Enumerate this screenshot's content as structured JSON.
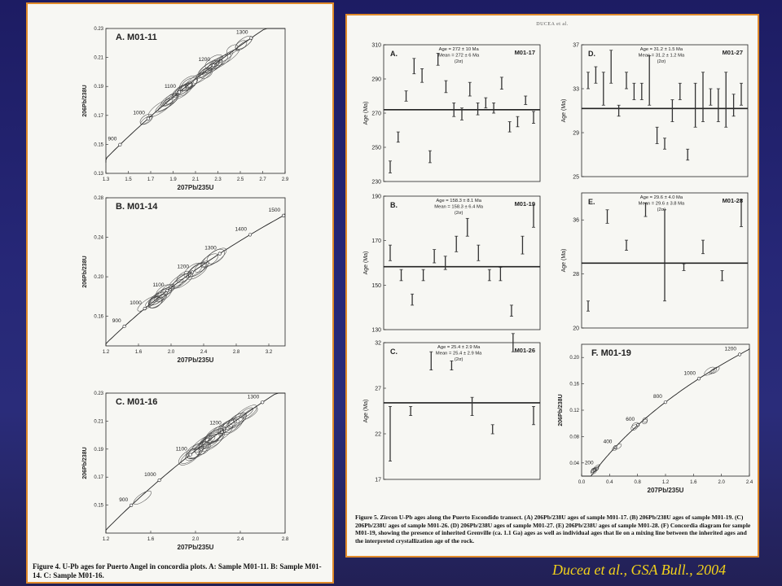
{
  "credit": "Ducea et al., GSA Bull., 2004",
  "left_caption": "Figure 4. U-Pb ages for Puerto Angel in concordia plots. A: Sample M01-11. B: Sample M01-14. C: Sample M01-16.",
  "right_header": "DUCEA et al.",
  "right_caption": "Figure 5. Zircon U-Pb ages along the Puerto Escondido transect. (A) 206Pb/238U ages of sample M01-17. (B) 206Pb/238U ages of sample M01-19. (C) 206Pb/238U ages of sample M01-26. (D) 206Pb/238U ages of sample M01-27. (E) 206Pb/238U ages of sample M01-28. (F) Concordia diagram for sample M01-19, showing the presence of inherited Grenville (ca. 1.1 Ga) ages as well as individual ages that lie on a mixing line between the inherited ages and the interpreted crystallization age of the rock.",
  "concordia_ylabel": "206Pb/238U",
  "concordia_xlabel": "207Pb/235U",
  "age_ylabel": "Age (Ma)",
  "chart_data": [
    {
      "type": "scatter",
      "panel": "A.",
      "sample": "M01-11",
      "xlabel": "207Pb/235U",
      "ylabel": "206Pb/238U",
      "xticks": [
        "1.3",
        "1.5",
        "1.7",
        "1.9",
        "2.1",
        "2.3",
        "2.5",
        "2.7",
        "2.9"
      ],
      "yticks": [
        "0.13",
        "0.15",
        "0.17",
        "0.19",
        "0.21",
        "0.23"
      ],
      "xlim": [
        1.3,
        2.9
      ],
      "ylim": [
        0.13,
        0.23
      ],
      "concordia_ages": [
        "900",
        "1000",
        "1100",
        "1200",
        "1300"
      ]
    },
    {
      "type": "scatter",
      "panel": "B.",
      "sample": "M01-14",
      "xlabel": "207Pb/235U",
      "ylabel": "206Pb/238U",
      "xticks": [
        "1.2",
        "1.6",
        "2.0",
        "2.4",
        "2.8",
        "3.2"
      ],
      "yticks": [
        "0.16",
        "0.20",
        "0.24",
        "0.28"
      ],
      "xlim": [
        1.2,
        3.4
      ],
      "ylim": [
        0.13,
        0.28
      ],
      "concordia_ages": [
        "900",
        "1000",
        "1100",
        "1200",
        "1300",
        "1400",
        "1500"
      ]
    },
    {
      "type": "scatter",
      "panel": "C.",
      "sample": "M01-16",
      "xlabel": "207Pb/235U",
      "ylabel": "206Pb/238U",
      "xticks": [
        "1.2",
        "1.6",
        "2.0",
        "2.4",
        "2.8"
      ],
      "yticks": [
        "0.15",
        "0.17",
        "0.19",
        "0.21",
        "0.23"
      ],
      "xlim": [
        1.2,
        2.8
      ],
      "ylim": [
        0.13,
        0.23
      ],
      "concordia_ages": [
        "900",
        "1000",
        "1100",
        "1200",
        "1300"
      ]
    },
    {
      "type": "scatter",
      "panel": "A.",
      "sample": "M01-17",
      "stats": [
        "Age = 272 ± 10 Ma",
        "Mean = 272 ± 6 Ma",
        "(2σ)"
      ],
      "ylim": [
        230,
        310
      ],
      "yticks": [
        "230",
        "250",
        "270",
        "290",
        "310"
      ],
      "mean": 272,
      "bars": [
        [
          235,
          242
        ],
        [
          253,
          259
        ],
        [
          277,
          283
        ],
        [
          293,
          302
        ],
        [
          288,
          296
        ],
        [
          241,
          248
        ],
        [
          298,
          305
        ],
        [
          282,
          289
        ],
        [
          268,
          276
        ],
        [
          266,
          273
        ],
        [
          280,
          288
        ],
        [
          269,
          276
        ],
        [
          273,
          279
        ],
        [
          270,
          276
        ],
        [
          284,
          291
        ],
        [
          259,
          265
        ],
        [
          262,
          268
        ],
        [
          275,
          280
        ],
        [
          264,
          271
        ]
      ]
    },
    {
      "type": "scatter",
      "panel": "B.",
      "sample": "M01-19",
      "stats": [
        "Age = 158.3 ± 8.1 Ma",
        "Mean = 158.3 ± 6.4 Ma",
        "(2σ)"
      ],
      "ylim": [
        130,
        190
      ],
      "yticks": [
        "130",
        "150",
        "170",
        "190"
      ],
      "mean": 158.3,
      "bars": [
        [
          161,
          168
        ],
        [
          152,
          157
        ],
        [
          141,
          146
        ],
        [
          152,
          157
        ],
        [
          160,
          166
        ],
        [
          157,
          163
        ],
        [
          165,
          172
        ],
        [
          172,
          180
        ],
        [
          161,
          168
        ],
        [
          152,
          157
        ],
        [
          152,
          158
        ],
        [
          136,
          141
        ],
        [
          164,
          172
        ],
        [
          176,
          186
        ]
      ]
    },
    {
      "type": "scatter",
      "panel": "C.",
      "sample": "M01-26",
      "stats": [
        "Age = 25.4 ± 2.9 Ma",
        "Mean = 25.4 ± 2.9 Ma",
        "(2σ)"
      ],
      "ylim": [
        17,
        32
      ],
      "yticks": [
        "17",
        "22",
        "27",
        "32"
      ],
      "mean": 25.4,
      "bars": [
        [
          19,
          25
        ],
        [
          24,
          25
        ],
        [
          29,
          31
        ],
        [
          29,
          30
        ],
        [
          24,
          26
        ],
        [
          22,
          23
        ],
        [
          31,
          33
        ],
        [
          23,
          25
        ]
      ]
    },
    {
      "type": "scatter",
      "panel": "D.",
      "sample": "M01-27",
      "stats": [
        "Age = 31.2 ± 1.5 Ma",
        "Mean = 31.2 ± 1.2 Ma",
        "(2σ)"
      ],
      "ylim": [
        25,
        37
      ],
      "yticks": [
        "25",
        "29",
        "33",
        "37"
      ],
      "mean": 31.2,
      "bars": [
        [
          33,
          34.5
        ],
        [
          33.5,
          35
        ],
        [
          31.5,
          34.5
        ],
        [
          33.5,
          36.5
        ],
        [
          30.5,
          31.5
        ],
        [
          33,
          34.5
        ],
        [
          32,
          33.5
        ],
        [
          32,
          33.5
        ],
        [
          31.5,
          36
        ],
        [
          28,
          29.5
        ],
        [
          27.5,
          28.5
        ],
        [
          30,
          32
        ],
        [
          32,
          33.5
        ],
        [
          26.5,
          27.5
        ],
        [
          29.5,
          33.5
        ],
        [
          30,
          34.5
        ],
        [
          31.5,
          33
        ],
        [
          30,
          33
        ],
        [
          29.5,
          34.5
        ],
        [
          30.5,
          32.5
        ],
        [
          31.5,
          33.5
        ]
      ]
    },
    {
      "type": "scatter",
      "panel": "E.",
      "sample": "M01-28",
      "stats": [
        "Age = 29.6 ± 4.0 Ma",
        "Mean = 29.6 ± 3.8 Ma",
        "(2σ)"
      ],
      "ylim": [
        20,
        40
      ],
      "yticks": [
        "20",
        "28",
        "36"
      ],
      "mean": 29.6,
      "bars": [
        [
          22.5,
          24
        ],
        [
          35.5,
          37.5
        ],
        [
          31.5,
          33
        ],
        [
          36.5,
          38.5
        ],
        [
          24,
          37.5
        ],
        [
          28.5,
          29.5
        ],
        [
          31,
          33
        ],
        [
          27,
          28.5
        ],
        [
          35,
          39
        ]
      ]
    },
    {
      "type": "scatter",
      "panel": "F.",
      "sample": "M01-19",
      "xlabel": "207Pb/235U",
      "ylabel": "206Pb/238U",
      "xticks": [
        "0.0",
        "0.4",
        "0.8",
        "1.2",
        "1.6",
        "2.0",
        "2.4"
      ],
      "yticks": [
        "0.04",
        "0.08",
        "0.12",
        "0.16",
        "0.20"
      ],
      "xlim": [
        0,
        2.4
      ],
      "ylim": [
        0.02,
        0.22
      ],
      "concordia_ages": [
        "200",
        "400",
        "600",
        "800",
        "1000",
        "1200"
      ]
    }
  ]
}
